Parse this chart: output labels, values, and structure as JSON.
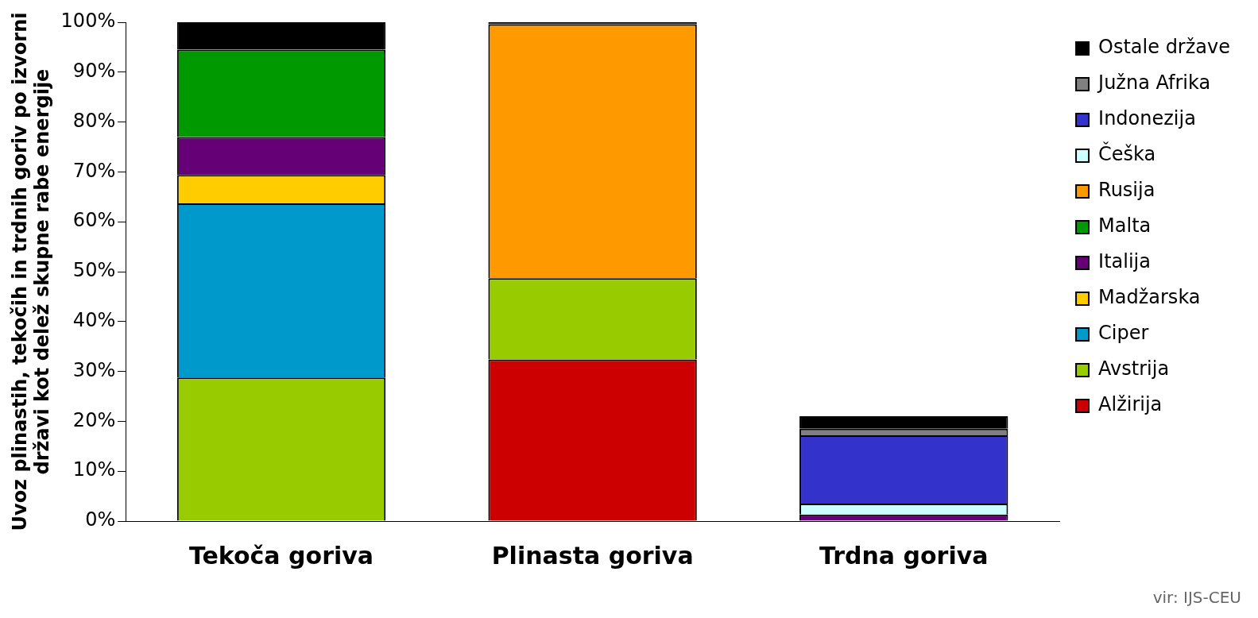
{
  "chart_data": {
    "type": "bar",
    "stacked": true,
    "ylabel": "Uvoz plinastih, tekočih in trdnih goriv po izvorni\ndržavi kot delež skupne rabe energije",
    "categories": [
      "Tekoča goriva",
      "Plinasta goriva",
      "Trdna goriva"
    ],
    "series": [
      {
        "name": "Alžirija",
        "color": "#cc0000",
        "values": [
          null,
          32.4,
          null
        ]
      },
      {
        "name": "Avstrija",
        "color": "#99cc00",
        "values": [
          28.8,
          16.3,
          null
        ]
      },
      {
        "name": "Ciper",
        "color": "#0099cc",
        "values": [
          34.9,
          null,
          null
        ]
      },
      {
        "name": "Madžarska",
        "color": "#ffcc00",
        "values": [
          5.7,
          null,
          null
        ]
      },
      {
        "name": "Italija",
        "color": "#660077",
        "values": [
          7.6,
          null,
          1.3
        ]
      },
      {
        "name": "Malta",
        "color": "#009900",
        "values": [
          17.5,
          null,
          null
        ]
      },
      {
        "name": "Rusija",
        "color": "#ff9900",
        "values": [
          null,
          50.9,
          null
        ]
      },
      {
        "name": "Češka",
        "color": "#ccffff",
        "values": [
          null,
          null,
          2.2
        ]
      },
      {
        "name": "Indonezija",
        "color": "#3333cc",
        "values": [
          null,
          null,
          13.7
        ]
      },
      {
        "name": "Južna Afrika",
        "color": "#808080",
        "values": [
          null,
          null,
          1.3
        ]
      },
      {
        "name": "Ostale države",
        "color": "#000000",
        "values": [
          5.5,
          0.4,
          2.5
        ]
      }
    ],
    "ylim": [
      0,
      100
    ],
    "yticks": [
      {
        "value": 0,
        "label": "0%"
      },
      {
        "value": 10,
        "label": "10%"
      },
      {
        "value": 20,
        "label": "20%"
      },
      {
        "value": 30,
        "label": "30%"
      },
      {
        "value": 40,
        "label": "40%"
      },
      {
        "value": 50,
        "label": "50%"
      },
      {
        "value": 60,
        "label": "60%"
      },
      {
        "value": 70,
        "label": "70%"
      },
      {
        "value": 80,
        "label": "80%"
      },
      {
        "value": 90,
        "label": "90%"
      },
      {
        "value": 100,
        "label": "100%"
      }
    ],
    "grid": false,
    "legend": "right",
    "annotations": [
      "vir: IJS-CEU"
    ]
  }
}
